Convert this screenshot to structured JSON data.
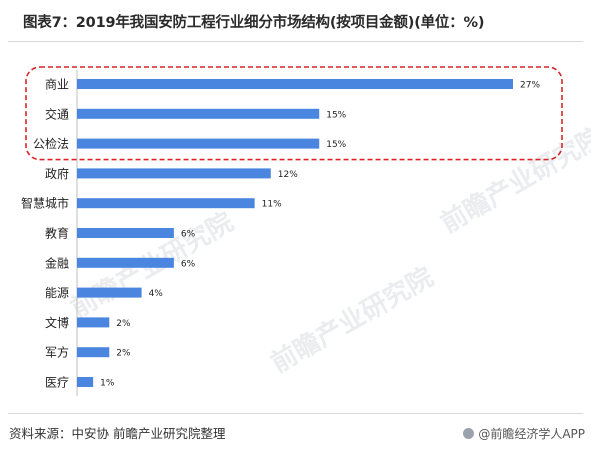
{
  "title": "图表7：2019年我国安防工程行业细分市场结构(按项目金额)(单位：%)",
  "source": "资料来源：中安协 前瞻产业研究院整理",
  "brand": "@前瞻经济学人APP",
  "watermark": "前瞻产业研究院",
  "colors": {
    "bar": "#4a86e0",
    "highlight_border": "#d9262a",
    "label": "#222222"
  },
  "chart_data": {
    "type": "bar",
    "orientation": "horizontal",
    "categories": [
      "商业",
      "交通",
      "公检法",
      "政府",
      "智慧城市",
      "教育",
      "金融",
      "能源",
      "文博",
      "军方",
      "医疗"
    ],
    "values": [
      27,
      15,
      15,
      12,
      11,
      6,
      6,
      4,
      2,
      2,
      1
    ],
    "value_labels": [
      "27%",
      "15%",
      "15%",
      "12%",
      "11%",
      "6%",
      "6%",
      "4%",
      "2%",
      "2%",
      "1%"
    ],
    "xlim": [
      0,
      27
    ],
    "highlighted_categories": [
      "商业",
      "交通",
      "公检法"
    ],
    "title": "",
    "xlabel": "",
    "ylabel": ""
  }
}
